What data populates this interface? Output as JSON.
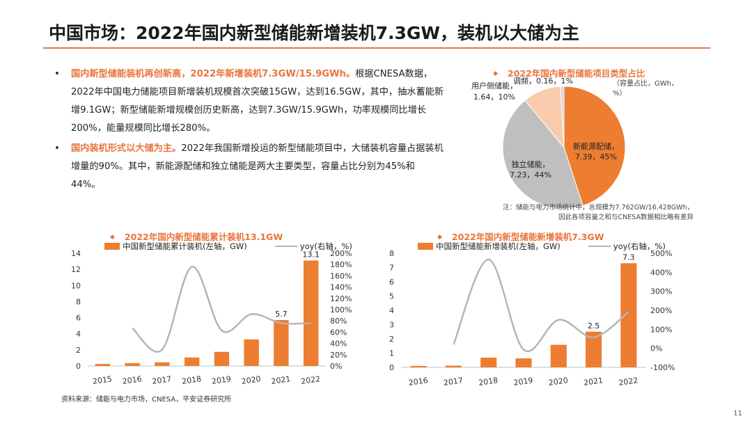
{
  "page": {
    "title": "中国市场：2022年国内新型储能新增装机7.3GW，装机以大储为主",
    "page_number": "11",
    "source": "资料来源：储能与电力市场，CNESA，平安证券研究所"
  },
  "bullets": [
    {
      "dot": "•",
      "highlight": "国内新型储能装机再创新高，2022年新增装机7.3GW/15.9GWh。",
      "text": "根据CNESA数据，2022年中国电力储能项目新增装机规模首次突破15GW，达到16.5GW，其中，抽水蓄能新增9.1GW；新型储能新增规模创历史新高，达到7.3GW/15.9GWh，功率规模同比增长200%，能量规模同比增长280%。"
    },
    {
      "dot": "•",
      "highlight": "国内装机形式以大储为主。",
      "text": "2022年我国新增投运的新型储能项目中，大储装机容量占据装机增量的90%。其中，新能源配储和独立储能是两大主要类型，容量占比分别为45%和44%。"
    }
  ],
  "pie_chart": {
    "diamond": "◆",
    "title": "2022年国内新型储能项目类型占比",
    "unit_note_line1": "（容量占比，GWh，",
    "unit_note_line2": "%）",
    "note_line1": "注：储能与电力市场统计中，总规模为7.762GW/16.428GWh，",
    "note_line2": "因此各项容量之和与CNESA数据相比略有差异"
  },
  "cumulative_chart": {
    "diamond": "◆",
    "title": "2022年国内新型储能累计装机13.1GW",
    "legend_bar": "中国新型储能累计装机(左轴，GW)",
    "legend_line": "yoy(右轴，%)"
  },
  "new_chart": {
    "diamond": "◆",
    "title": "2022年国内新型储能新增装机7.3GW",
    "legend_bar": "中国新型储能新增装机(左轴，GW)",
    "legend_line": "yoy(右轴，%)"
  },
  "colors": {
    "accent": "#e8743b",
    "bar": "#ed7d31",
    "line": "#b5b5b5",
    "pie": [
      "#ed7d31",
      "#bfbfbf",
      "#f8cbad",
      "#d9d9d9"
    ]
  },
  "chart_data": [
    {
      "type": "pie",
      "title": "2022年国内新型储能项目类型占比",
      "slices": [
        {
          "label": "新能源配储，",
          "value_label": "7.39，45%",
          "value": 7.39,
          "percent": 45
        },
        {
          "label": "独立储能，",
          "value_label": "7.23，44%",
          "value": 7.23,
          "percent": 44
        },
        {
          "label": "用户侧储能，",
          "value_label": "1.64，10%",
          "value": 1.64,
          "percent": 10
        },
        {
          "label": "调频，0.16，1%",
          "value_label": "",
          "value": 0.16,
          "percent": 1
        }
      ]
    },
    {
      "type": "bar",
      "title": "2022年国内新型储能累计装机13.1GW",
      "categories": [
        "2015",
        "2016",
        "2017",
        "2018",
        "2019",
        "2020",
        "2021",
        "2022"
      ],
      "series": [
        {
          "name": "中国新型储能累计装机(左轴，GW)",
          "axis": "left",
          "values": [
            0.25,
            0.35,
            0.45,
            1.05,
            1.75,
            3.3,
            5.7,
            13.1
          ]
        },
        {
          "name": "yoy(右轴，%)",
          "axis": "right",
          "type": "line",
          "values": [
            null,
            67,
            29,
            176,
            63,
            92,
            76,
            76
          ]
        }
      ],
      "data_labels": {
        "6": "5.7",
        "7": "13.1"
      },
      "y_left": {
        "min": 0,
        "max": 14,
        "ticks": [
          "0",
          "2",
          "4",
          "6",
          "8",
          "10",
          "12",
          "14"
        ]
      },
      "y_right": {
        "min": 0,
        "max": 200,
        "ticks": [
          "0%",
          "20%",
          "40%",
          "60%",
          "80%",
          "100%",
          "120%",
          "140%",
          "160%",
          "180%",
          "200%"
        ]
      }
    },
    {
      "type": "bar",
      "title": "2022年国内新型储能新增装机7.3GW",
      "categories": [
        "2016",
        "2017",
        "2018",
        "2019",
        "2020",
        "2021",
        "2022"
      ],
      "series": [
        {
          "name": "中国新型储能新增装机(左轴，GW)",
          "axis": "left",
          "values": [
            0.1,
            0.12,
            0.68,
            0.63,
            1.58,
            2.5,
            7.3
          ]
        },
        {
          "name": "yoy(右轴，%)",
          "axis": "right",
          "type": "line",
          "values": [
            null,
            20,
            467,
            -7,
            150,
            58,
            192
          ]
        }
      ],
      "data_labels": {
        "5": "2.5",
        "6": "7.3"
      },
      "y_left": {
        "min": 0,
        "max": 8,
        "ticks": [
          "0",
          "1",
          "2",
          "3",
          "4",
          "5",
          "6",
          "7",
          "8"
        ]
      },
      "y_right": {
        "min": -100,
        "max": 500,
        "ticks": [
          "-100%",
          "0%",
          "100%",
          "200%",
          "300%",
          "400%",
          "500%"
        ]
      }
    }
  ]
}
